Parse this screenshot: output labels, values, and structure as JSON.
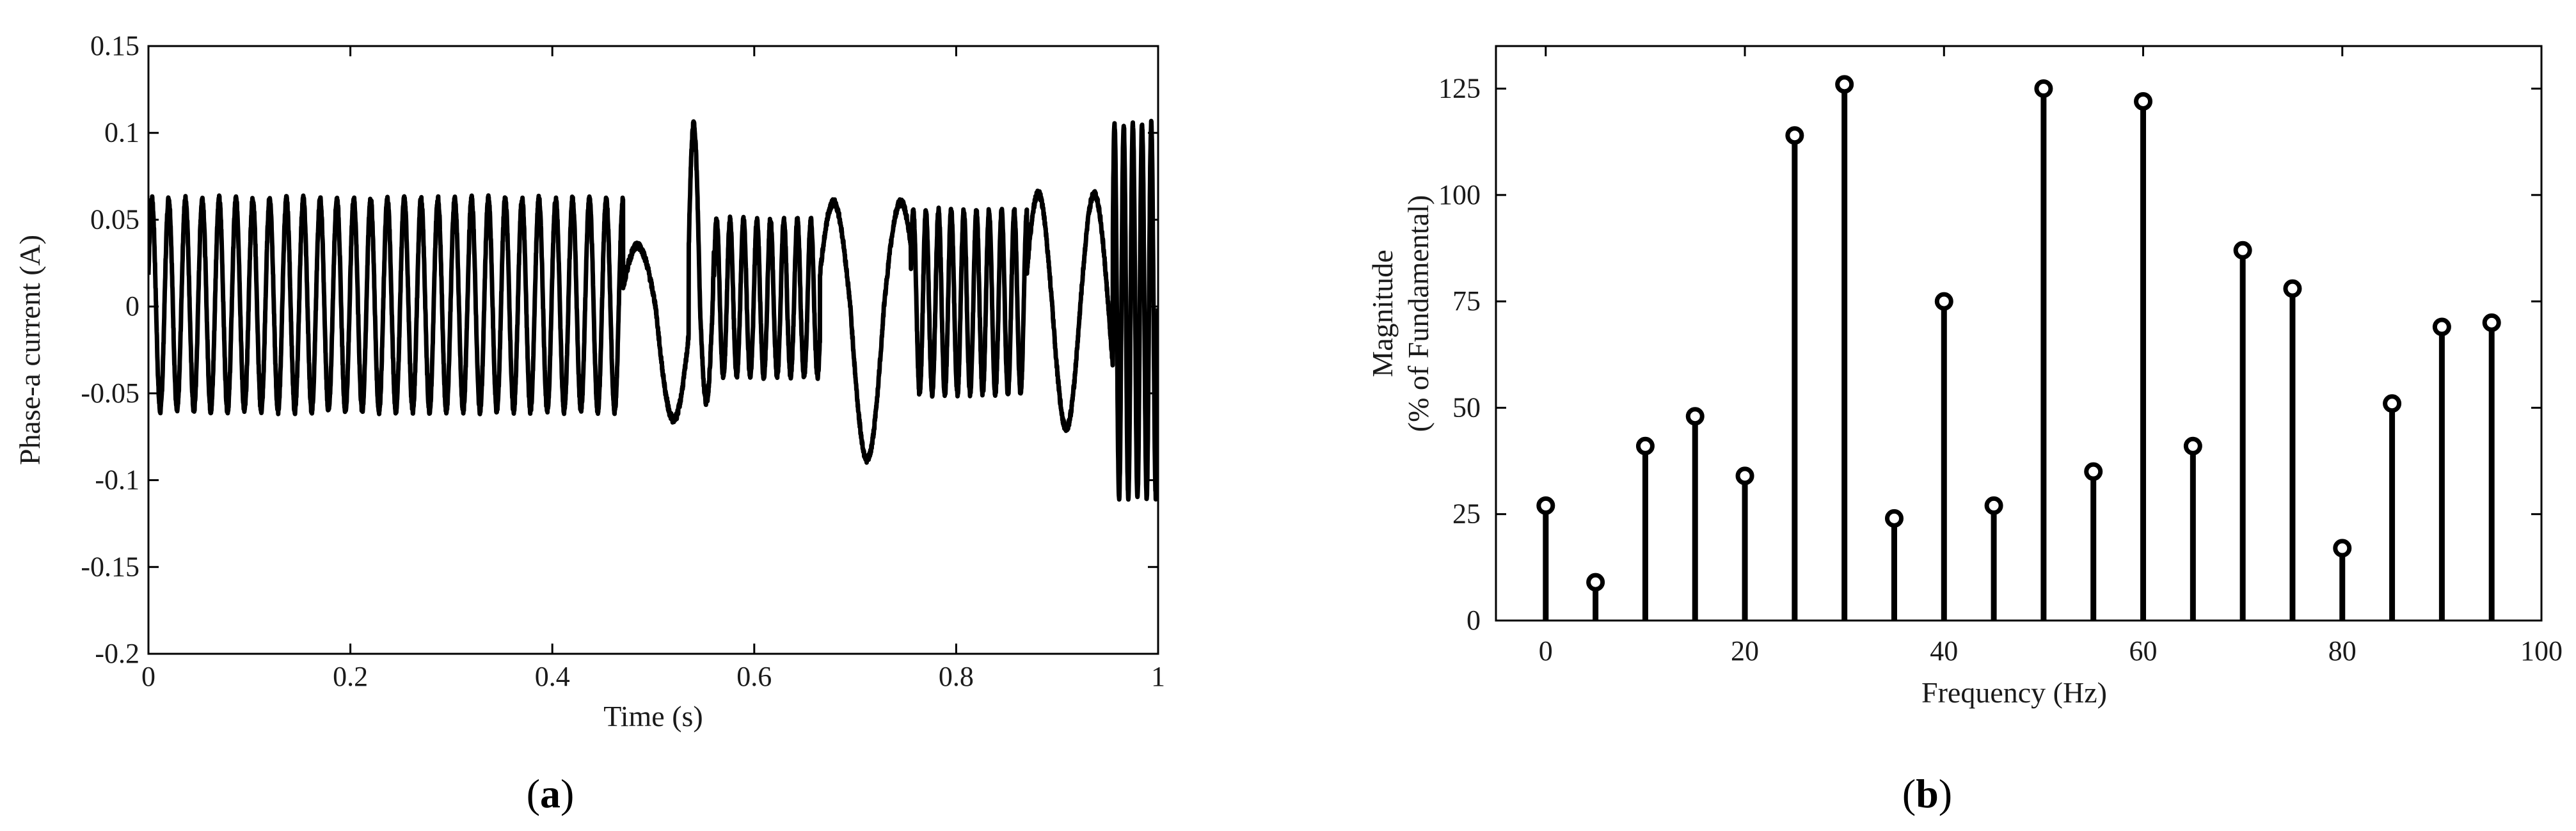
{
  "chart_data": [
    {
      "type": "line",
      "title": "",
      "xlabel": "Time (s)",
      "ylabel": "Phase-a current (A)",
      "caption": {
        "open": "(",
        "letter": "a",
        "close": ")"
      },
      "xlim": [
        0,
        1
      ],
      "ylim": [
        -0.2,
        0.15
      ],
      "xticks": [
        0,
        0.2,
        0.4,
        0.6,
        0.8,
        1
      ],
      "xtick_labels": [
        "0",
        "0.2",
        "0.4",
        "0.6",
        "0.8",
        "1"
      ],
      "yticks": [
        -0.2,
        -0.15,
        -0.1,
        -0.05,
        0,
        0.05,
        0.1,
        0.15
      ],
      "ytick_labels": [
        "-0.2",
        "-0.15",
        "-0.1",
        "-0.05",
        "0",
        "0.05",
        "0.1",
        "0.15"
      ],
      "grid": false,
      "line_color": "#000000",
      "segments": [
        {
          "t_start": 0.0,
          "t_end": 0.47,
          "type": "sine",
          "freq_hz": 60,
          "amp_pos": 0.062,
          "amp_neg": -0.06
        },
        {
          "t_start": 0.47,
          "t_end": 0.535,
          "type": "sine",
          "freq_hz": 14,
          "amp_pos": 0.035,
          "amp_neg": -0.065
        },
        {
          "t_start": 0.535,
          "t_end": 0.56,
          "type": "sine",
          "freq_hz": 40,
          "amp_pos": 0.105,
          "amp_neg": -0.055
        },
        {
          "t_start": 0.56,
          "t_end": 0.665,
          "type": "sine",
          "freq_hz": 75,
          "amp_pos": 0.05,
          "amp_neg": -0.04
        },
        {
          "t_start": 0.665,
          "t_end": 0.755,
          "type": "sine",
          "freq_hz": 15,
          "amp_pos": 0.06,
          "amp_neg": -0.088
        },
        {
          "t_start": 0.755,
          "t_end": 0.87,
          "type": "sine",
          "freq_hz": 80,
          "amp_pos": 0.055,
          "amp_neg": -0.05
        },
        {
          "t_start": 0.87,
          "t_end": 0.955,
          "type": "sine",
          "freq_hz": 18,
          "amp_pos": 0.065,
          "amp_neg": -0.07
        },
        {
          "t_start": 0.955,
          "t_end": 1.0,
          "type": "sine",
          "freq_hz": 110,
          "amp_pos": 0.105,
          "amp_neg": -0.11
        }
      ]
    },
    {
      "type": "stem",
      "title": "",
      "xlabel": "Frequency (Hz)",
      "ylabel_lines": [
        "Magnitude",
        "(% of Fundamental)"
      ],
      "caption": {
        "open": "(",
        "letter": "b",
        "close": ")"
      },
      "xlim": [
        -5,
        100
      ],
      "ylim": [
        0,
        135
      ],
      "xticks": [
        0,
        20,
        40,
        60,
        80,
        100
      ],
      "xtick_labels": [
        "0",
        "20",
        "40",
        "60",
        "80",
        "100"
      ],
      "yticks": [
        0,
        25,
        50,
        75,
        100,
        125
      ],
      "ytick_labels": [
        "0",
        "25",
        "50",
        "75",
        "100",
        "125"
      ],
      "grid": false,
      "stem_color": "#000000",
      "x": [
        0,
        5,
        10,
        15,
        20,
        25,
        30,
        35,
        40,
        45,
        50,
        55,
        60,
        65,
        70,
        75,
        80,
        85,
        90,
        95
      ],
      "values": [
        27,
        9,
        41,
        48,
        34,
        114,
        126,
        24,
        75,
        27,
        125,
        35,
        122,
        41,
        87,
        78,
        17,
        51,
        69,
        70
      ]
    }
  ]
}
